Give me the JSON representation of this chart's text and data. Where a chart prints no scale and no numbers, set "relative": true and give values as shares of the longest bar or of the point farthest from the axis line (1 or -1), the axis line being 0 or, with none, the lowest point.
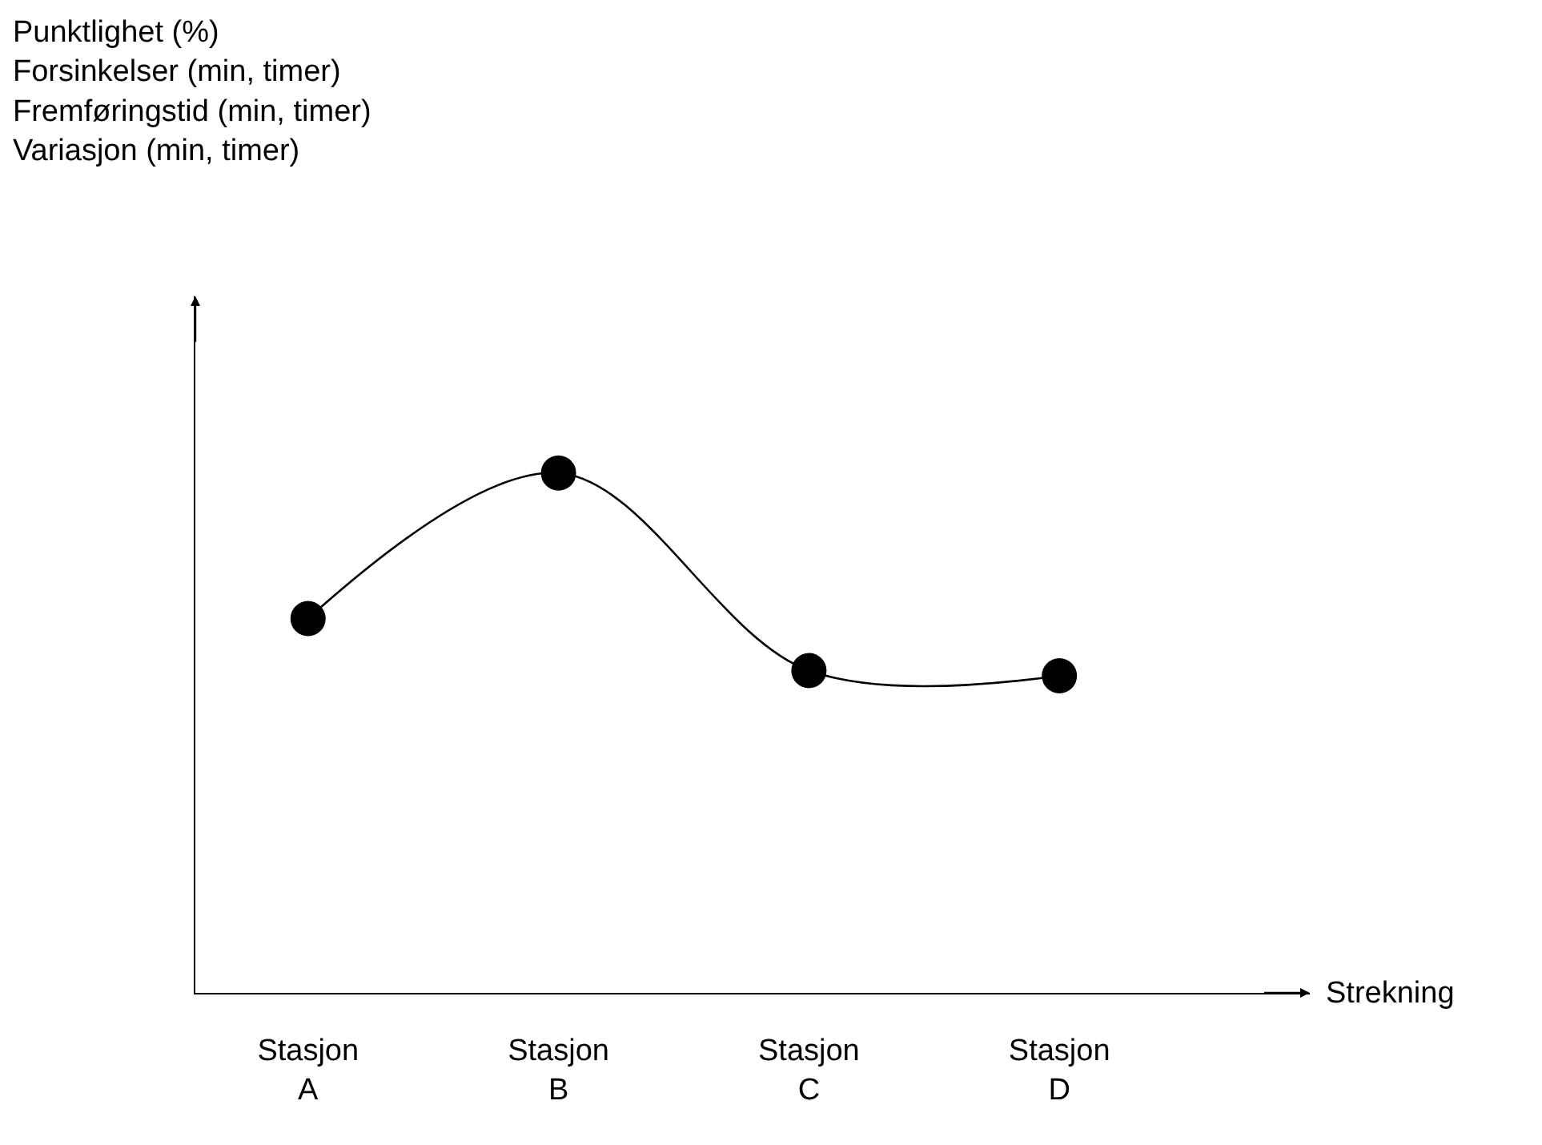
{
  "chart_data": {
    "type": "line",
    "relative": true,
    "annotations": [
      "Punktlighet (%)\nForsinkelser (min, timer)\nFremføringstid (min, timer)\nVariasjon (min, timer)"
    ],
    "xlabel": "Strekning",
    "categories": [
      "Stasjon\nA",
      "Stasjon\nB",
      "Stasjon\nC",
      "Stasjon\nD"
    ],
    "series": [
      {
        "color": "#000000",
        "values": [
          0.72,
          1,
          0.62,
          0.61
        ]
      }
    ],
    "marker": "circle",
    "line_style": "solid",
    "grid": false,
    "tick_labels": "x"
  }
}
